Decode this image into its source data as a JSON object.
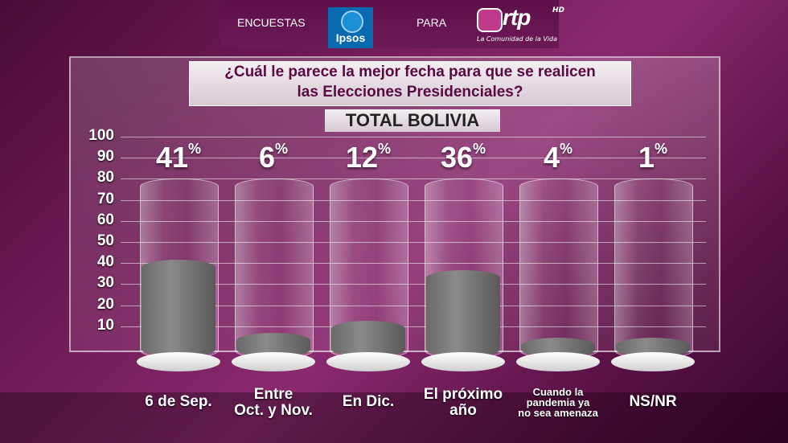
{
  "header": {
    "left_label": "ENCUESTAS",
    "ipsos_logo": "Ipsos",
    "mid_label": "PARA",
    "rtp_logo": "rtp",
    "rtp_hd": "HD",
    "rtp_tagline": "La Comunidad de la Vida"
  },
  "chart_data": {
    "type": "bar",
    "title_line1": "¿Cuál le parece la mejor fecha para que se realicen",
    "title_line2": "las Elecciones Presidenciales?",
    "subtitle": "TOTAL BOLIVIA",
    "categories": [
      "6 de Sep.",
      "Entre Oct. y Nov.",
      "En Dic.",
      "El próximo año",
      "Cuando la pandemia ya no sea amenaza",
      "NS/NR"
    ],
    "category_lines": [
      [
        "6 de Sep."
      ],
      [
        "Entre",
        "Oct. y Nov."
      ],
      [
        "En Dic."
      ],
      [
        "El próximo",
        "año"
      ],
      [
        "Cuando la",
        "pandemia ya",
        "no sea amenaza"
      ],
      [
        "NS/NR"
      ]
    ],
    "values": [
      41,
      6,
      12,
      36,
      4,
      1
    ],
    "value_labels": [
      "41",
      "6",
      "12",
      "36",
      "4",
      "1"
    ],
    "unit": "%",
    "yticks": [
      100,
      90,
      80,
      70,
      60,
      50,
      40,
      30,
      20,
      10
    ],
    "ylim": [
      0,
      100
    ],
    "grid": true,
    "colors": {
      "fill": "#7a7a7a",
      "accent": "#6e1a55"
    }
  }
}
